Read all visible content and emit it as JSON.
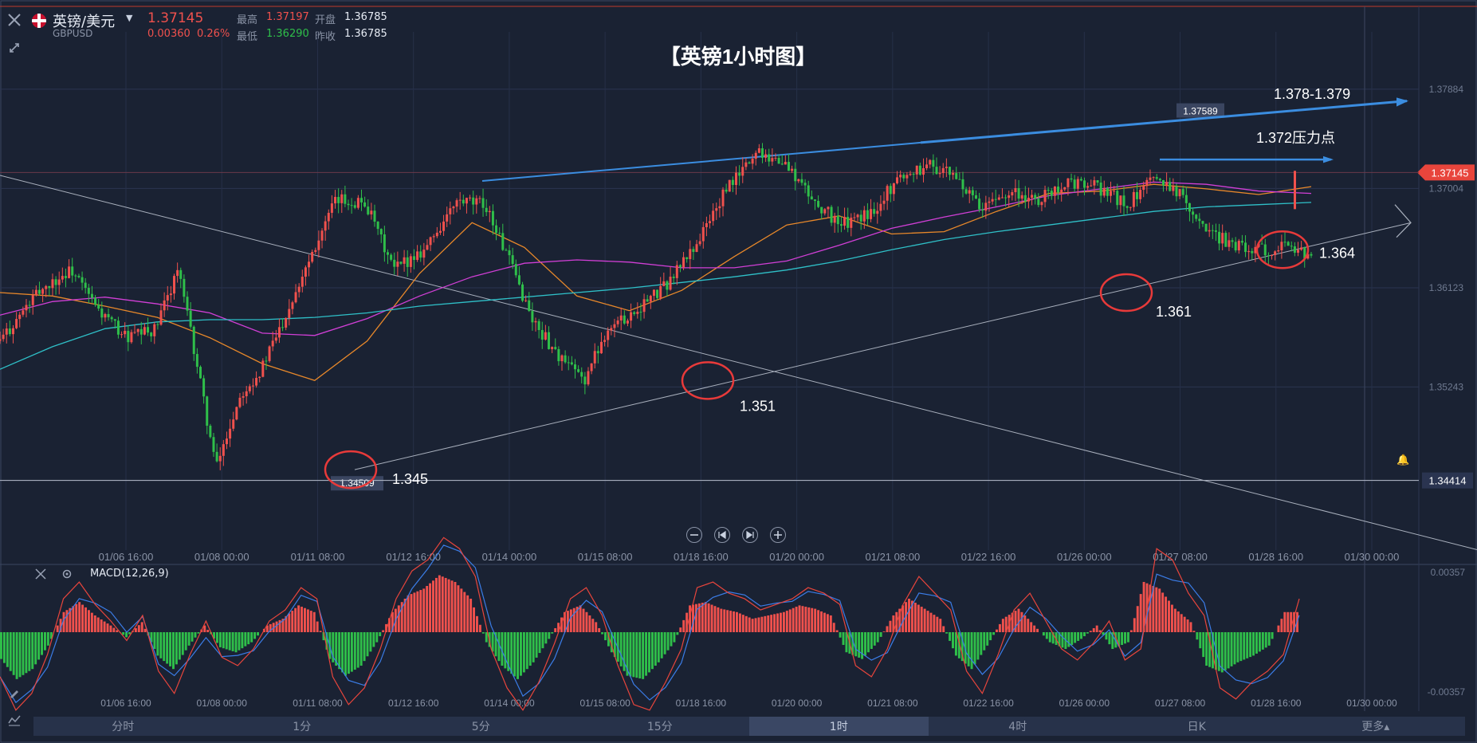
{
  "header": {
    "symbol_name": "英镑/美元",
    "symbol_code": "GBPUSD",
    "last_price": "1.37145",
    "change": "0.00360",
    "change_pct": "0.26%",
    "high_label": "最高",
    "high_value": "1.37197",
    "low_label": "最低",
    "low_value": "1.36290",
    "open_label": "开盘",
    "open_value": "1.36785",
    "prev_close_label": "昨收",
    "prev_close_value": "1.36785"
  },
  "colors": {
    "background": "#1a2233",
    "up": "#f0514d",
    "down": "#2fbf4a",
    "ma_orange": "#e8882a",
    "ma_magenta": "#d13fd6",
    "ma_cyan": "#2fc0c8",
    "trend_blue": "#3b8de0",
    "annotation_red": "#e83a3a"
  },
  "chart_data": {
    "type": "candlestick",
    "title": "【英镑1小时图】",
    "timeframe": "1小时",
    "x_ticks": [
      "01/06 16:00",
      "01/08 00:00",
      "01/11 08:00",
      "01/12 16:00",
      "01/14 00:00",
      "01/15 08:00",
      "01/18 16:00",
      "01/20 00:00",
      "01/21 08:00",
      "01/22 16:00",
      "01/26 00:00",
      "01/27 08:00",
      "01/28 16:00",
      "01/30 00:00"
    ],
    "y_ticks": [
      "1.37884",
      "1.37004",
      "1.36123",
      "1.35243",
      "1.34414"
    ],
    "ylim": [
      1.3415,
      1.3818
    ],
    "current_price": "1.37145",
    "high_tag": "1.37589",
    "low_tag": "1.34509",
    "horizontal_line_price": "1.34414",
    "price_path": [
      {
        "x": 0,
        "y": 1.3565
      },
      {
        "x": 25,
        "y": 1.361
      },
      {
        "x": 45,
        "y": 1.3628
      },
      {
        "x": 62,
        "y": 1.3592
      },
      {
        "x": 80,
        "y": 1.3568
      },
      {
        "x": 98,
        "y": 1.3575
      },
      {
        "x": 112,
        "y": 1.363
      },
      {
        "x": 124,
        "y": 1.3545
      },
      {
        "x": 136,
        "y": 1.3452
      },
      {
        "x": 152,
        "y": 1.352
      },
      {
        "x": 164,
        "y": 1.3538
      },
      {
        "x": 178,
        "y": 1.3582
      },
      {
        "x": 195,
        "y": 1.364
      },
      {
        "x": 212,
        "y": 1.369
      },
      {
        "x": 230,
        "y": 1.3688
      },
      {
        "x": 248,
        "y": 1.3628
      },
      {
        "x": 268,
        "y": 1.3648
      },
      {
        "x": 288,
        "y": 1.3688
      },
      {
        "x": 306,
        "y": 1.3686
      },
      {
        "x": 322,
        "y": 1.3632
      },
      {
        "x": 336,
        "y": 1.3582
      },
      {
        "x": 354,
        "y": 1.3548
      },
      {
        "x": 368,
        "y": 1.353
      },
      {
        "x": 382,
        "y": 1.3575
      },
      {
        "x": 398,
        "y": 1.359
      },
      {
        "x": 418,
        "y": 1.3612
      },
      {
        "x": 438,
        "y": 1.365
      },
      {
        "x": 458,
        "y": 1.37
      },
      {
        "x": 478,
        "y": 1.3735
      },
      {
        "x": 496,
        "y": 1.372
      },
      {
        "x": 512,
        "y": 1.369
      },
      {
        "x": 530,
        "y": 1.3668
      },
      {
        "x": 548,
        "y": 1.3678
      },
      {
        "x": 566,
        "y": 1.371
      },
      {
        "x": 586,
        "y": 1.3722
      },
      {
        "x": 604,
        "y": 1.3708
      },
      {
        "x": 618,
        "y": 1.368
      },
      {
        "x": 636,
        "y": 1.37
      },
      {
        "x": 652,
        "y": 1.3688
      },
      {
        "x": 670,
        "y": 1.3705
      },
      {
        "x": 690,
        "y": 1.3702
      },
      {
        "x": 710,
        "y": 1.3686
      },
      {
        "x": 730,
        "y": 1.3712
      },
      {
        "x": 746,
        "y": 1.3692
      },
      {
        "x": 762,
        "y": 1.366
      },
      {
        "x": 780,
        "y": 1.365
      },
      {
        "x": 796,
        "y": 1.3645
      },
      {
        "x": 812,
        "y": 1.3652
      },
      {
        "x": 826,
        "y": 1.3638
      }
    ],
    "moving_averages": [
      {
        "name": "MA orange",
        "color": "#e8882a",
        "values": [
          1.3608,
          1.3605,
          1.3596,
          1.3586,
          1.3568,
          1.3545,
          1.353,
          1.3565,
          1.3625,
          1.367,
          1.3648,
          1.3605,
          1.3592,
          1.361,
          1.364,
          1.3668,
          1.3676,
          1.366,
          1.3662,
          1.368,
          1.3696,
          1.3698,
          1.3704,
          1.37,
          1.3695,
          1.3702
        ]
      },
      {
        "name": "MA magenta",
        "color": "#d13fd6",
        "values": [
          1.3588,
          1.36,
          1.3604,
          1.3598,
          1.359,
          1.3572,
          1.357,
          1.3585,
          1.3605,
          1.3622,
          1.3634,
          1.3637,
          1.3635,
          1.363,
          1.363,
          1.3636,
          1.365,
          1.3665,
          1.3675,
          1.3684,
          1.3694,
          1.37,
          1.3706,
          1.3704,
          1.3698,
          1.3696
        ]
      },
      {
        "name": "MA cyan",
        "color": "#2fc0c8",
        "values": [
          1.354,
          1.356,
          1.3576,
          1.3582,
          1.3584,
          1.3584,
          1.3586,
          1.359,
          1.3596,
          1.36,
          1.3604,
          1.3608,
          1.3612,
          1.3617,
          1.3622,
          1.3628,
          1.3636,
          1.3646,
          1.3655,
          1.3662,
          1.3668,
          1.3674,
          1.368,
          1.3684,
          1.3686,
          1.3688
        ]
      }
    ],
    "annotations": [
      {
        "text": "1.345",
        "price": 1.3451
      },
      {
        "text": "1.351",
        "price": 1.353
      },
      {
        "text": "1.361",
        "price": 1.3608
      },
      {
        "text": "1.364",
        "price": 1.3646
      },
      {
        "text": "1.378-1.379",
        "price": 1.3778
      },
      {
        "text": "1.372压力点",
        "price": 1.3728
      }
    ],
    "macd": {
      "label": "MACD(12,26,9)",
      "y_ticks": [
        "0.00357",
        "-0.00357"
      ],
      "histogram": [
        -0.0016,
        -0.0028,
        -0.0022,
        -0.0008,
        0.0012,
        0.0018,
        0.001,
        0.0004,
        -0.0003,
        0.0006,
        -0.0014,
        -0.0022,
        -0.0008,
        0.0004,
        -0.0009,
        -0.0012,
        -0.0006,
        0.0004,
        0.0008,
        0.0016,
        0.0012,
        -0.0016,
        -0.0026,
        -0.002,
        -0.0006,
        0.0012,
        0.0022,
        0.0026,
        0.0034,
        0.003,
        0.002,
        -0.0006,
        -0.002,
        -0.0028,
        -0.0018,
        -0.0004,
        0.0012,
        0.0016,
        0.0006,
        -0.0012,
        -0.0026,
        -0.0028,
        -0.0018,
        -0.0006,
        0.0016,
        0.0018,
        0.0014,
        0.0012,
        0.0008,
        0.001,
        0.0012,
        0.0016,
        0.0014,
        0.001,
        -0.0012,
        -0.0016,
        -0.0006,
        0.001,
        0.002,
        0.0014,
        0.0008,
        -0.0014,
        -0.0022,
        -0.0008,
        0.0008,
        0.0014,
        0.0004,
        -0.0006,
        -0.001,
        -0.0004,
        0.0004,
        -0.001,
        -0.0006,
        0.003,
        0.0026,
        0.0014,
        0.0006,
        -0.002,
        -0.0024,
        -0.0018,
        -0.0014,
        -0.0008,
        0.0012
      ]
    }
  },
  "timeframes": [
    "分时",
    "1分",
    "5分",
    "15分",
    "1时",
    "4时",
    "日K",
    "更多▴"
  ],
  "active_timeframe": "1时",
  "zoom_controls": [
    "zoom-out",
    "step-back",
    "step-forward",
    "zoom-in"
  ]
}
